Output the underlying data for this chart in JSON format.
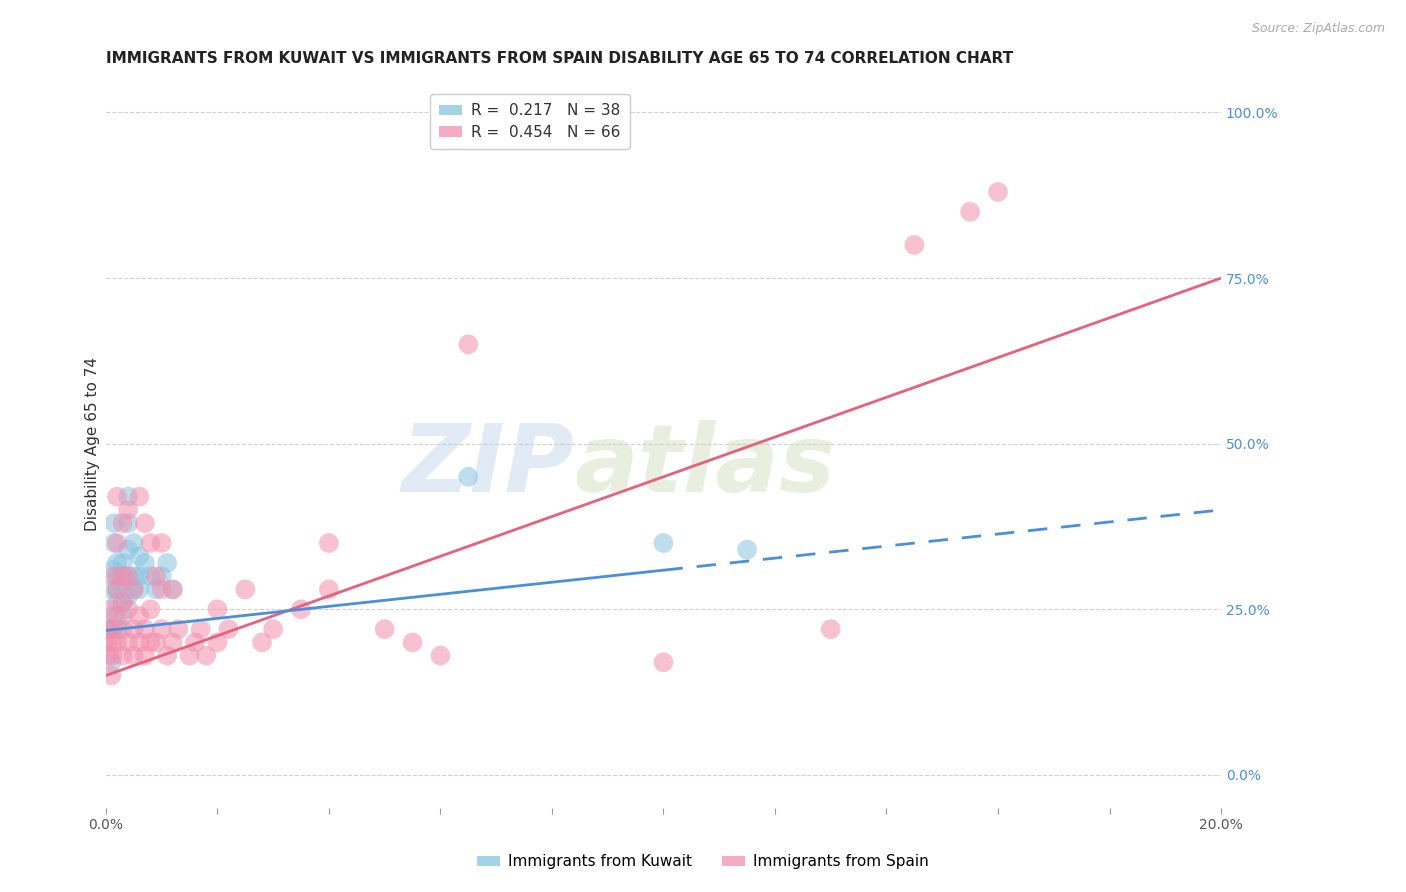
{
  "title": "IMMIGRANTS FROM KUWAIT VS IMMIGRANTS FROM SPAIN DISABILITY AGE 65 TO 74 CORRELATION CHART",
  "source": "Source: ZipAtlas.com",
  "ylabel": "Disability Age 65 to 74",
  "xlabel_legend1": "Immigrants from Kuwait",
  "xlabel_legend2": "Immigrants from Spain",
  "R1": 0.217,
  "N1": 38,
  "R2": 0.454,
  "N2": 66,
  "color1": "#89c4e1",
  "color2": "#f28fad",
  "trendline1_color": "#4a90d9",
  "trendline2_color": "#e8607a",
  "xlim": [
    0.0,
    0.2
  ],
  "ylim": [
    -0.05,
    1.05
  ],
  "yticks_right": [
    0.0,
    0.25,
    0.5,
    0.75,
    1.0
  ],
  "ytick_labels_right": [
    "0.0%",
    "25.0%",
    "50.0%",
    "75.0%",
    "100.0%"
  ],
  "xticks": [
    0.0,
    0.02,
    0.04,
    0.06,
    0.08,
    0.1,
    0.12,
    0.14,
    0.16,
    0.18,
    0.2
  ],
  "xtick_labels": [
    "0.0%",
    "",
    "",
    "",
    "",
    "",
    "",
    "",
    "",
    "",
    "20.0%"
  ],
  "watermark_zip": "ZIP",
  "watermark_atlas": "atlas",
  "grid_color": "#d0d0d0",
  "background_color": "#ffffff",
  "title_fontsize": 11,
  "axis_label_fontsize": 11,
  "tick_fontsize": 10,
  "legend_fontsize": 11,
  "kuwait_x": [
    0.0005,
    0.001,
    0.001,
    0.001,
    0.0012,
    0.0013,
    0.0015,
    0.0015,
    0.002,
    0.002,
    0.002,
    0.002,
    0.002,
    0.003,
    0.003,
    0.003,
    0.003,
    0.003,
    0.004,
    0.004,
    0.004,
    0.004,
    0.004,
    0.005,
    0.005,
    0.005,
    0.006,
    0.006,
    0.006,
    0.007,
    0.008,
    0.009,
    0.01,
    0.011,
    0.012,
    0.065,
    0.1,
    0.115
  ],
  "kuwait_y": [
    0.22,
    0.17,
    0.22,
    0.28,
    0.24,
    0.31,
    0.35,
    0.38,
    0.22,
    0.26,
    0.28,
    0.3,
    0.32,
    0.24,
    0.26,
    0.28,
    0.3,
    0.32,
    0.27,
    0.3,
    0.34,
    0.38,
    0.42,
    0.28,
    0.3,
    0.35,
    0.28,
    0.3,
    0.33,
    0.32,
    0.3,
    0.28,
    0.3,
    0.32,
    0.28,
    0.45,
    0.35,
    0.34
  ],
  "spain_x": [
    0.0003,
    0.0005,
    0.0006,
    0.001,
    0.001,
    0.001,
    0.0012,
    0.0013,
    0.0015,
    0.002,
    0.002,
    0.002,
    0.002,
    0.002,
    0.003,
    0.003,
    0.003,
    0.003,
    0.003,
    0.004,
    0.004,
    0.004,
    0.004,
    0.005,
    0.005,
    0.005,
    0.006,
    0.006,
    0.006,
    0.007,
    0.007,
    0.007,
    0.008,
    0.008,
    0.008,
    0.009,
    0.009,
    0.01,
    0.01,
    0.01,
    0.011,
    0.012,
    0.012,
    0.013,
    0.015,
    0.016,
    0.017,
    0.018,
    0.02,
    0.02,
    0.022,
    0.025,
    0.028,
    0.03,
    0.035,
    0.04,
    0.04,
    0.05,
    0.055,
    0.06,
    0.065,
    0.1,
    0.13,
    0.145,
    0.155,
    0.16
  ],
  "spain_y": [
    0.2,
    0.18,
    0.22,
    0.15,
    0.2,
    0.25,
    0.18,
    0.22,
    0.3,
    0.2,
    0.24,
    0.28,
    0.35,
    0.42,
    0.18,
    0.22,
    0.26,
    0.3,
    0.38,
    0.2,
    0.25,
    0.3,
    0.4,
    0.18,
    0.22,
    0.28,
    0.2,
    0.24,
    0.42,
    0.18,
    0.22,
    0.38,
    0.2,
    0.25,
    0.35,
    0.2,
    0.3,
    0.22,
    0.28,
    0.35,
    0.18,
    0.2,
    0.28,
    0.22,
    0.18,
    0.2,
    0.22,
    0.18,
    0.2,
    0.25,
    0.22,
    0.28,
    0.2,
    0.22,
    0.25,
    0.28,
    0.35,
    0.22,
    0.2,
    0.18,
    0.65,
    0.17,
    0.22,
    0.8,
    0.85,
    0.88
  ],
  "trend1_x0": 0.0,
  "trend1_y0": 0.218,
  "trend1_x1": 0.2,
  "trend1_y1": 0.4,
  "trend1_solid_end": 0.1,
  "trend2_x0": 0.0,
  "trend2_y0": 0.15,
  "trend2_x1": 0.2,
  "trend2_y1": 0.75
}
